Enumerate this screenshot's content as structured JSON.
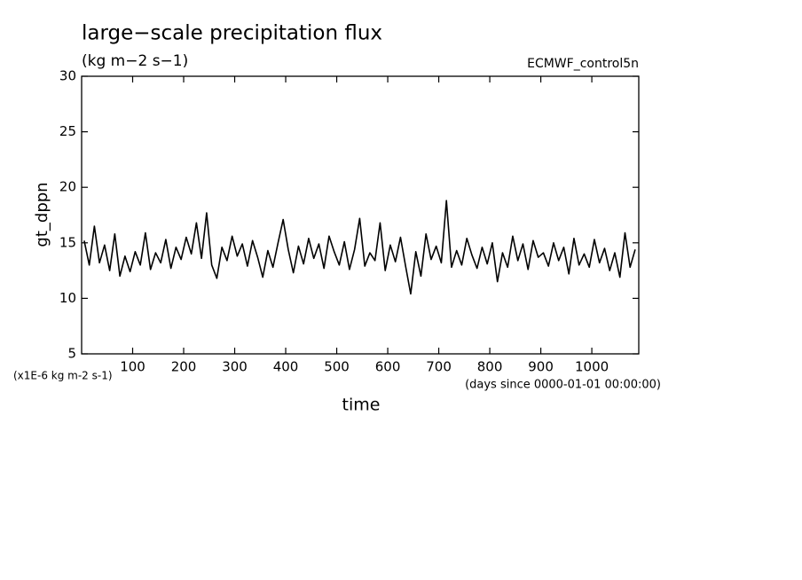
{
  "chart_data": {
    "type": "line",
    "title": "large−scale precipitation flux",
    "subtitle": "(kg m−2 s−1)",
    "source": "ECMWF_control5n",
    "ylabel": "gt_dppn",
    "xlabel": "time",
    "yunits": "(x1E-6 kg m-2 s-1)",
    "xunits": "(days since 0000-01-01 00:00:00)",
    "color": "#000000",
    "xlim": [
      0,
      1092
    ],
    "ylim": [
      5,
      30
    ],
    "xticks": [
      100,
      200,
      300,
      400,
      500,
      600,
      700,
      800,
      900,
      1000
    ],
    "yticks": [
      5,
      10,
      15,
      20,
      25,
      30
    ],
    "x": [
      5,
      15,
      25,
      35,
      45,
      55,
      65,
      75,
      85,
      95,
      105,
      115,
      125,
      135,
      145,
      155,
      165,
      175,
      185,
      195,
      205,
      215,
      225,
      235,
      245,
      255,
      265,
      275,
      285,
      295,
      305,
      315,
      325,
      335,
      345,
      355,
      365,
      375,
      385,
      395,
      405,
      415,
      425,
      435,
      445,
      455,
      465,
      475,
      485,
      495,
      505,
      515,
      525,
      535,
      545,
      555,
      565,
      575,
      585,
      595,
      605,
      615,
      625,
      635,
      645,
      655,
      665,
      675,
      685,
      695,
      705,
      715,
      725,
      735,
      745,
      755,
      765,
      775,
      785,
      795,
      805,
      815,
      825,
      835,
      845,
      855,
      865,
      875,
      885,
      895,
      905,
      915,
      925,
      935,
      945,
      955,
      965,
      975,
      985,
      995,
      1005,
      1015,
      1025,
      1035,
      1045,
      1055,
      1065,
      1075,
      1085
    ],
    "values": [
      15.2,
      13.0,
      16.5,
      13.2,
      14.8,
      12.5,
      15.8,
      12.0,
      13.8,
      12.4,
      14.2,
      13.0,
      15.9,
      12.6,
      14.1,
      13.2,
      15.3,
      12.7,
      14.6,
      13.5,
      15.5,
      14.0,
      16.8,
      13.6,
      17.7,
      13.0,
      11.8,
      14.6,
      13.4,
      15.6,
      13.8,
      14.9,
      12.9,
      15.2,
      13.7,
      11.9,
      14.3,
      12.8,
      15.0,
      17.1,
      14.4,
      12.3,
      14.7,
      13.1,
      15.4,
      13.6,
      14.9,
      12.7,
      15.6,
      14.2,
      13.0,
      15.1,
      12.6,
      14.4,
      17.2,
      12.9,
      14.1,
      13.4,
      16.8,
      12.5,
      14.8,
      13.3,
      15.5,
      12.9,
      10.4,
      14.2,
      12.0,
      15.8,
      13.5,
      14.7,
      13.2,
      18.8,
      12.8,
      14.3,
      13.0,
      15.4,
      13.9,
      12.7,
      14.6,
      13.1,
      15.0,
      11.5,
      14.1,
      12.8,
      15.6,
      13.4,
      14.9,
      12.6,
      15.2,
      13.7,
      14.1,
      12.9,
      15.0,
      13.4,
      14.6,
      12.2,
      15.4,
      13.0,
      14.0,
      12.8,
      15.3,
      13.2,
      14.5,
      12.5,
      14.1,
      11.9,
      15.9,
      12.8,
      14.4
    ]
  }
}
